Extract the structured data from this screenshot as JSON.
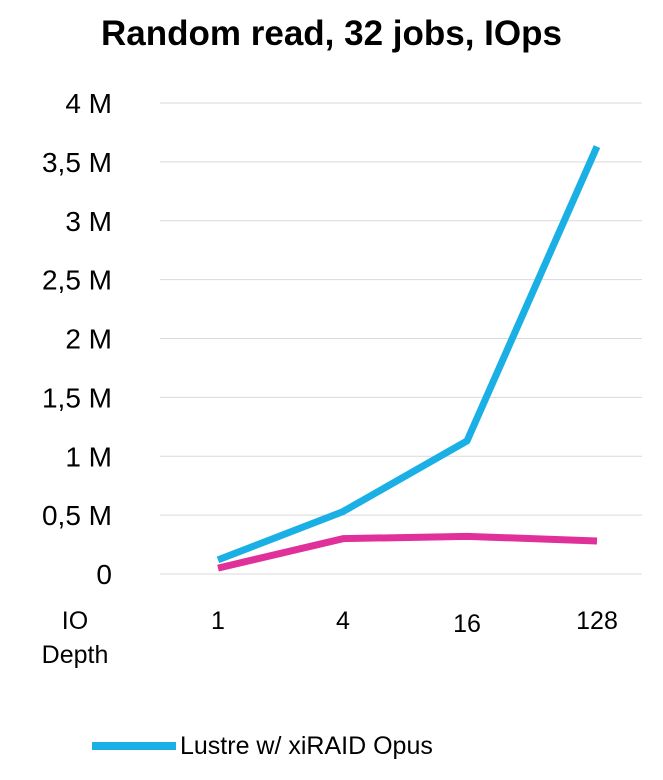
{
  "chart_data": {
    "type": "line",
    "title": "Random read, 32 jobs, IOps",
    "xlabel_lines": [
      "IO",
      "Depth"
    ],
    "categories": [
      "1",
      "4",
      "16",
      "128"
    ],
    "y_ticks": [
      "0",
      "0,5 M",
      "1 M",
      "1,5 M",
      "2 M",
      "2,5 M",
      "3 M",
      "3,5 M",
      "4 M"
    ],
    "ylim": [
      0,
      4000000
    ],
    "grid": true,
    "legend_position": "bottom",
    "series": [
      {
        "name": "Lustre w/ xiRAID Opus",
        "color": "#1ab0e6",
        "values": [
          120000,
          530000,
          1130000,
          3630000
        ]
      },
      {
        "color": "#e0309a",
        "values": [
          50000,
          300000,
          320000,
          280000
        ]
      }
    ]
  }
}
